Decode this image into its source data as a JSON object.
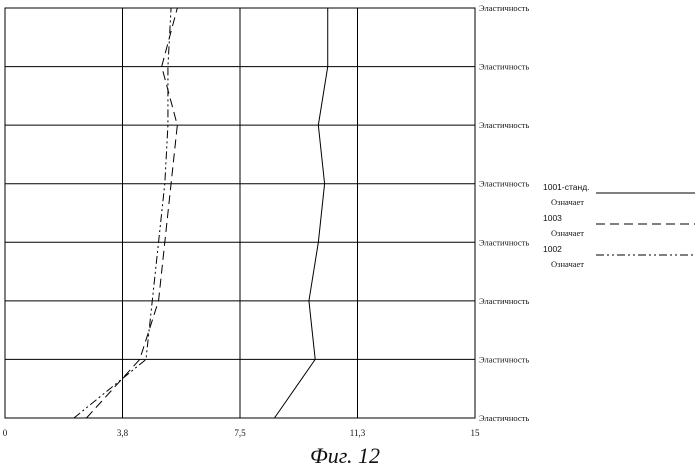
{
  "caption": "Фиг. 12",
  "chart_data": {
    "type": "line",
    "orientation": "horizontal-values",
    "x_ticks": [
      "0",
      "3,8",
      "7,5",
      "11,3",
      "15"
    ],
    "xlim": [
      0,
      15
    ],
    "y_categories": [
      "Эластичность",
      "Эластичность",
      "Эластичность",
      "Эластичность",
      "Эластичность",
      "Эластичность",
      "Эластичность",
      "Эластичность"
    ],
    "grid": true,
    "legend_position": "right",
    "series": [
      {
        "name": "1001-станд.",
        "sub": "Означает",
        "style": "solid",
        "points": [
          [
            8.6,
            0
          ],
          [
            9.9,
            1
          ],
          [
            9.7,
            2
          ],
          [
            10.0,
            3
          ],
          [
            10.2,
            4
          ],
          [
            10.0,
            5
          ],
          [
            10.3,
            6
          ],
          [
            10.3,
            7
          ]
        ]
      },
      {
        "name": "1003",
        "sub": "Означает",
        "style": "dashed",
        "points": [
          [
            2.6,
            0
          ],
          [
            4.3,
            1
          ],
          [
            4.9,
            2
          ],
          [
            5.1,
            3
          ],
          [
            5.3,
            4
          ],
          [
            5.5,
            5
          ],
          [
            5.0,
            6
          ],
          [
            5.5,
            7
          ]
        ]
      },
      {
        "name": "1002",
        "sub": "Означает",
        "style": "dashdot",
        "points": [
          [
            2.2,
            0
          ],
          [
            4.5,
            1
          ],
          [
            4.7,
            2
          ],
          [
            4.9,
            3
          ],
          [
            5.1,
            4
          ],
          [
            5.2,
            5
          ],
          [
            5.2,
            6
          ],
          [
            5.3,
            7
          ]
        ]
      }
    ]
  }
}
